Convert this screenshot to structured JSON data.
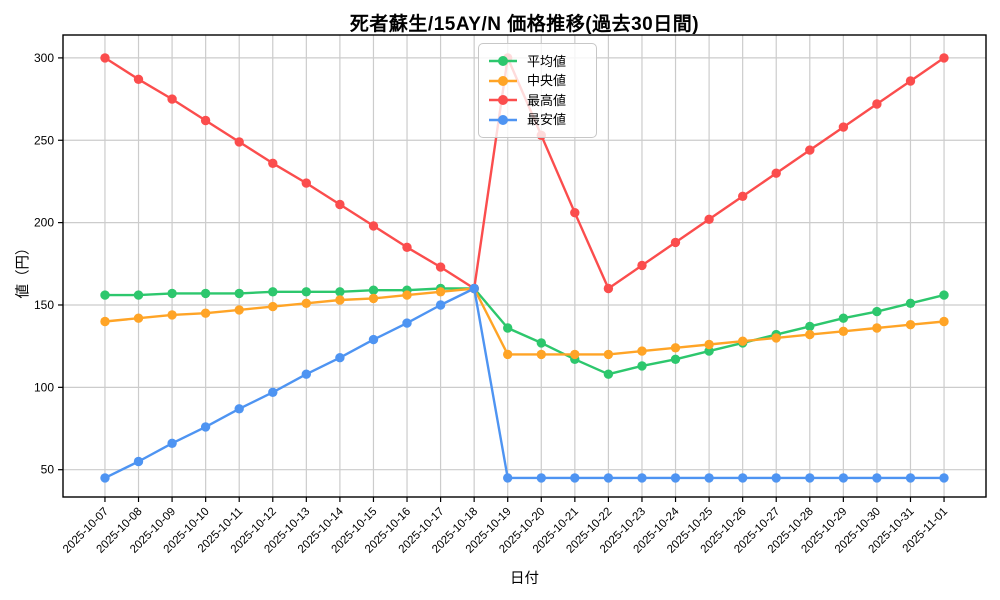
{
  "chart_data": {
    "type": "line",
    "title": "死者蘇生/15AY/N 価格推移(過去30日間)",
    "xlabel": "日付",
    "ylabel": "値（円）",
    "grid": true,
    "legend_position": "upper center",
    "yticks": [
      50,
      100,
      150,
      200,
      250,
      300
    ],
    "ylim": [
      33,
      314
    ],
    "categories": [
      "2025-10-07",
      "2025-10-08",
      "2025-10-09",
      "2025-10-10",
      "2025-10-11",
      "2025-10-12",
      "2025-10-13",
      "2025-10-14",
      "2025-10-15",
      "2025-10-16",
      "2025-10-17",
      "2025-10-18",
      "2025-10-19",
      "2025-10-20",
      "2025-10-21",
      "2025-10-22",
      "2025-10-23",
      "2025-10-24",
      "2025-10-25",
      "2025-10-26",
      "2025-10-27",
      "2025-10-28",
      "2025-10-29",
      "2025-10-30",
      "2025-10-31",
      "2025-11-01"
    ],
    "series": [
      {
        "key": "average",
        "name": "平均値",
        "color": "#2dc76d",
        "values": [
          156,
          156,
          157,
          157,
          157,
          158,
          158,
          158,
          159,
          159,
          160,
          160,
          136,
          127,
          117,
          108,
          113,
          117,
          122,
          127,
          132,
          137,
          142,
          146,
          151,
          156
        ]
      },
      {
        "key": "median",
        "name": "中央値",
        "color": "#ffa426",
        "values": [
          140,
          142,
          144,
          145,
          147,
          149,
          151,
          153,
          154,
          156,
          158,
          160,
          120,
          120,
          120,
          120,
          122,
          124,
          126,
          128,
          130,
          132,
          134,
          136,
          138,
          140
        ]
      },
      {
        "key": "max",
        "name": "最高値",
        "color": "#fb4d4d",
        "values": [
          300,
          287,
          275,
          262,
          249,
          236,
          224,
          211,
          198,
          185,
          173,
          160,
          300,
          253,
          206,
          160,
          174,
          188,
          202,
          216,
          230,
          244,
          258,
          272,
          286,
          300
        ]
      },
      {
        "key": "min",
        "name": "最安値",
        "color": "#4e94f2",
        "values": [
          45,
          55,
          66,
          76,
          87,
          97,
          108,
          118,
          129,
          139,
          150,
          160,
          45,
          45,
          45,
          45,
          45,
          45,
          45,
          45,
          45,
          45,
          45,
          45,
          45,
          45
        ]
      }
    ]
  }
}
